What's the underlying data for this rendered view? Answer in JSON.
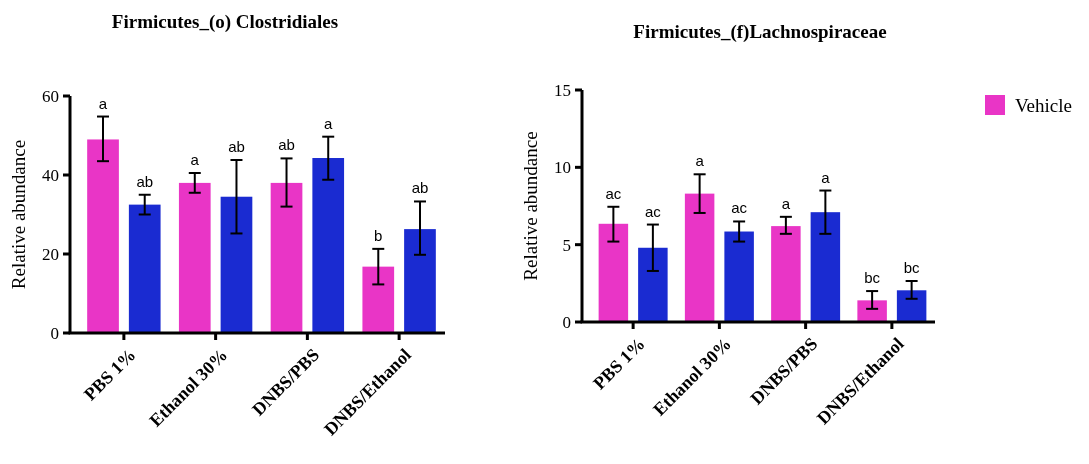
{
  "chart_data": [
    {
      "type": "bar",
      "title": "Firmicutes_(o) Clostridiales",
      "ylabel": "Relative abundance",
      "categories": [
        "PBS 1%",
        "Ethanol 30%",
        "DNBS/PBS",
        "DNBS/Ethanol"
      ],
      "ylim": [
        0,
        60
      ],
      "yticks": [
        0,
        20,
        40,
        60
      ],
      "grid": false,
      "legend": false,
      "series": [
        {
          "color": "#e935c6",
          "values": [
            49,
            38,
            38,
            16.8
          ],
          "errors": [
            [
              43.5,
              54.8
            ],
            [
              35.5,
              40.5
            ],
            [
              32,
              44.2
            ],
            [
              12.3,
              21.3
            ]
          ],
          "value_labels": [
            "a",
            "a",
            "ab",
            "b"
          ]
        },
        {
          "color": "#1a2bd1",
          "values": [
            32.5,
            34.5,
            44.3,
            26.3
          ],
          "errors": [
            [
              30,
              35
            ],
            [
              25.2,
              43.8
            ],
            [
              38.8,
              49.7
            ],
            [
              19.8,
              33.3
            ]
          ],
          "value_labels": [
            "ab",
            "ab",
            "a",
            "ab"
          ]
        }
      ]
    },
    {
      "type": "bar",
      "title": "Firmicutes_(f)Lachnospiraceae",
      "ylabel": "Relative abundance",
      "categories": [
        "PBS 1%",
        "Ethanol 30%",
        "DNBS/PBS",
        "DNBS/Ethanol"
      ],
      "ylim": [
        0,
        15
      ],
      "yticks": [
        0,
        5,
        10,
        15
      ],
      "grid": false,
      "legend": "right",
      "series": [
        {
          "name": "Vehicle",
          "color": "#e935c6",
          "values": [
            6.35,
            8.3,
            6.2,
            1.4
          ],
          "errors": [
            [
              5.2,
              7.45
            ],
            [
              7.05,
              9.55
            ],
            [
              5.7,
              6.8
            ],
            [
              0.85,
              2.0
            ]
          ],
          "value_labels": [
            "ac",
            "a",
            "a",
            "bc"
          ]
        },
        {
          "color": "#1a2bd1",
          "values": [
            4.8,
            5.85,
            7.1,
            2.05
          ],
          "errors": [
            [
              3.3,
              6.3
            ],
            [
              5.2,
              6.5
            ],
            [
              5.7,
              8.5
            ],
            [
              1.5,
              2.65
            ]
          ],
          "value_labels": [
            "ac",
            "ac",
            "a",
            "bc"
          ]
        }
      ]
    }
  ]
}
